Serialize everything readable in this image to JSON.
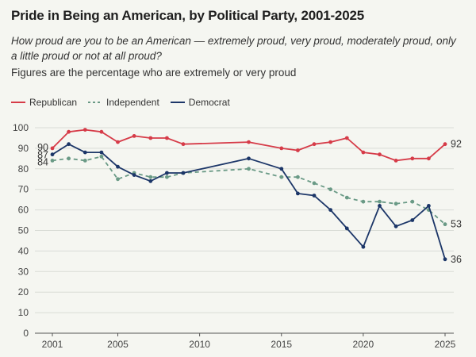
{
  "chart_data": {
    "type": "line",
    "title": "Pride in Being an American, by Political Party, 2001-2025",
    "subtitle": "How proud are you to be an American — extremely proud, very proud, moderately proud, only a little proud or not at all proud?",
    "note": "Figures are the percentage who are extremely or very proud",
    "xlabel": "",
    "ylabel": "",
    "xlim": [
      2001,
      2025
    ],
    "ylim": [
      0,
      100
    ],
    "x_ticks": [
      2001,
      2005,
      2010,
      2015,
      2020,
      2025
    ],
    "y_ticks": [
      0,
      10,
      20,
      30,
      40,
      50,
      60,
      70,
      80,
      90,
      100
    ],
    "grid": "horizontal",
    "legend_position": "top-left",
    "series": [
      {
        "name": "Republican",
        "color": "#d63b48",
        "style": "solid",
        "points": [
          [
            2001,
            90
          ],
          [
            2002,
            98
          ],
          [
            2003,
            99
          ],
          [
            2004,
            98
          ],
          [
            2005,
            93
          ],
          [
            2006,
            96
          ],
          [
            2007,
            95
          ],
          [
            2008,
            95
          ],
          [
            2009,
            92
          ],
          [
            2013,
            93
          ],
          [
            2015,
            90
          ],
          [
            2016,
            89
          ],
          [
            2017,
            92
          ],
          [
            2018,
            93
          ],
          [
            2019,
            95
          ],
          [
            2020,
            88
          ],
          [
            2021,
            87
          ],
          [
            2022,
            84
          ],
          [
            2023,
            85
          ],
          [
            2024,
            85
          ],
          [
            2025,
            92
          ]
        ],
        "start_label": "90",
        "end_label": "92"
      },
      {
        "name": "Independent",
        "color": "#6a9a86",
        "style": "dashed",
        "points": [
          [
            2001,
            84
          ],
          [
            2002,
            85
          ],
          [
            2003,
            84
          ],
          [
            2004,
            86
          ],
          [
            2005,
            75
          ],
          [
            2006,
            78
          ],
          [
            2007,
            76
          ],
          [
            2008,
            76
          ],
          [
            2009,
            78
          ],
          [
            2013,
            80
          ],
          [
            2015,
            76
          ],
          [
            2016,
            76
          ],
          [
            2017,
            73
          ],
          [
            2018,
            70
          ],
          [
            2019,
            66
          ],
          [
            2020,
            64
          ],
          [
            2021,
            64
          ],
          [
            2022,
            63
          ],
          [
            2023,
            64
          ],
          [
            2024,
            60
          ],
          [
            2025,
            53
          ]
        ],
        "start_label": "84",
        "end_label": "53"
      },
      {
        "name": "Democrat",
        "color": "#1c3668",
        "style": "solid",
        "points": [
          [
            2001,
            87
          ],
          [
            2002,
            92
          ],
          [
            2003,
            88
          ],
          [
            2004,
            88
          ],
          [
            2005,
            81
          ],
          [
            2006,
            77
          ],
          [
            2007,
            74
          ],
          [
            2008,
            78
          ],
          [
            2009,
            78
          ],
          [
            2013,
            85
          ],
          [
            2015,
            80
          ],
          [
            2016,
            68
          ],
          [
            2017,
            67
          ],
          [
            2018,
            60
          ],
          [
            2019,
            51
          ],
          [
            2020,
            42
          ],
          [
            2021,
            62
          ],
          [
            2022,
            52
          ],
          [
            2023,
            55
          ],
          [
            2024,
            62
          ],
          [
            2025,
            36
          ]
        ],
        "start_label": "87",
        "end_label": "36"
      }
    ]
  }
}
